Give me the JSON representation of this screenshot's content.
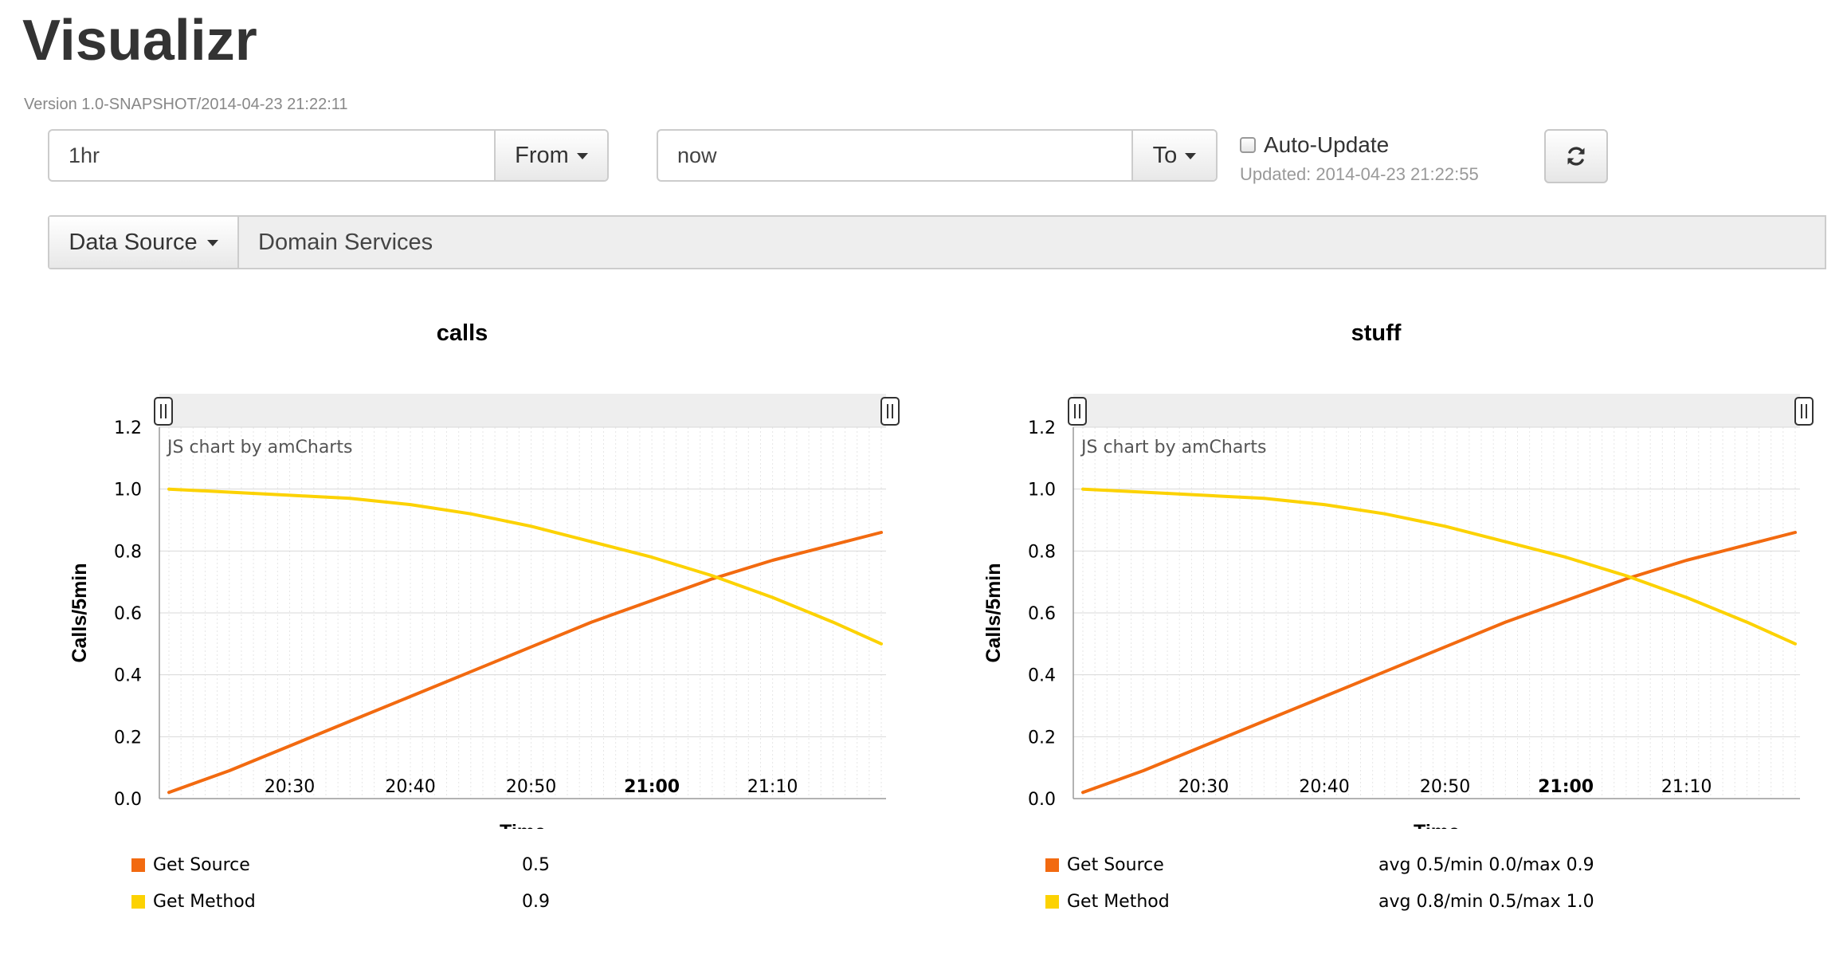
{
  "app": {
    "title": "Visualizr",
    "version": "Version 1.0-SNAPSHOT/2014-04-23 21:22:11"
  },
  "time_range": {
    "from_value": "1hr",
    "from_button": "From",
    "to_value": "now",
    "to_button": "To"
  },
  "auto_update": {
    "label": "Auto-Update",
    "checked": false,
    "updated_text": "Updated: 2014-04-23 21:22:55"
  },
  "refresh_button": {
    "icon": "refresh-icon"
  },
  "data_source": {
    "button_label": "Data Source",
    "value": "Domain Services"
  },
  "colors": {
    "get_source": "#f26a10",
    "get_method": "#fcd202"
  },
  "chart_data": [
    {
      "type": "line",
      "title": "calls",
      "xlabel": "Time",
      "ylabel": "Calls/5min",
      "watermark": "JS chart by amCharts",
      "x_ticks": [
        "20:30",
        "20:40",
        "20:50",
        "21:00",
        "21:10"
      ],
      "x_bold_tick": "21:00",
      "x_range": [
        "20:20",
        "21:19"
      ],
      "y_ticks": [
        "0.0",
        "0.2",
        "0.4",
        "0.6",
        "0.8",
        "1.0",
        "1.2"
      ],
      "ylim": [
        0,
        1.2
      ],
      "grid": true,
      "scrollbar": true,
      "legend_position": "bottom",
      "x": [
        "20:20",
        "20:25",
        "20:30",
        "20:35",
        "20:40",
        "20:45",
        "20:50",
        "20:55",
        "21:00",
        "21:05",
        "21:10",
        "21:15",
        "21:19"
      ],
      "series": [
        {
          "name": "Get Source",
          "legend_value": "0.5",
          "values": [
            0.02,
            0.09,
            0.17,
            0.25,
            0.33,
            0.41,
            0.49,
            0.57,
            0.64,
            0.71,
            0.77,
            0.82,
            0.86
          ]
        },
        {
          "name": "Get Method",
          "legend_value": "0.9",
          "values": [
            1.0,
            0.99,
            0.98,
            0.97,
            0.95,
            0.92,
            0.88,
            0.83,
            0.78,
            0.72,
            0.65,
            0.57,
            0.5
          ]
        }
      ]
    },
    {
      "type": "line",
      "title": "stuff",
      "xlabel": "Time",
      "ylabel": "Calls/5min",
      "watermark": "JS chart by amCharts",
      "x_ticks": [
        "20:30",
        "20:40",
        "20:50",
        "21:00",
        "21:10"
      ],
      "x_bold_tick": "21:00",
      "x_range": [
        "20:20",
        "21:19"
      ],
      "y_ticks": [
        "0.0",
        "0.2",
        "0.4",
        "0.6",
        "0.8",
        "1.0",
        "1.2"
      ],
      "ylim": [
        0,
        1.2
      ],
      "grid": true,
      "scrollbar": true,
      "legend_position": "bottom",
      "x": [
        "20:20",
        "20:25",
        "20:30",
        "20:35",
        "20:40",
        "20:45",
        "20:50",
        "20:55",
        "21:00",
        "21:05",
        "21:10",
        "21:15",
        "21:19"
      ],
      "series": [
        {
          "name": "Get Source",
          "legend_value": "avg 0.5/min 0.0/max 0.9",
          "values": [
            0.02,
            0.09,
            0.17,
            0.25,
            0.33,
            0.41,
            0.49,
            0.57,
            0.64,
            0.71,
            0.77,
            0.82,
            0.86
          ]
        },
        {
          "name": "Get Method",
          "legend_value": "avg 0.8/min 0.5/max 1.0",
          "values": [
            1.0,
            0.99,
            0.98,
            0.97,
            0.95,
            0.92,
            0.88,
            0.83,
            0.78,
            0.72,
            0.65,
            0.57,
            0.5
          ]
        }
      ]
    }
  ]
}
